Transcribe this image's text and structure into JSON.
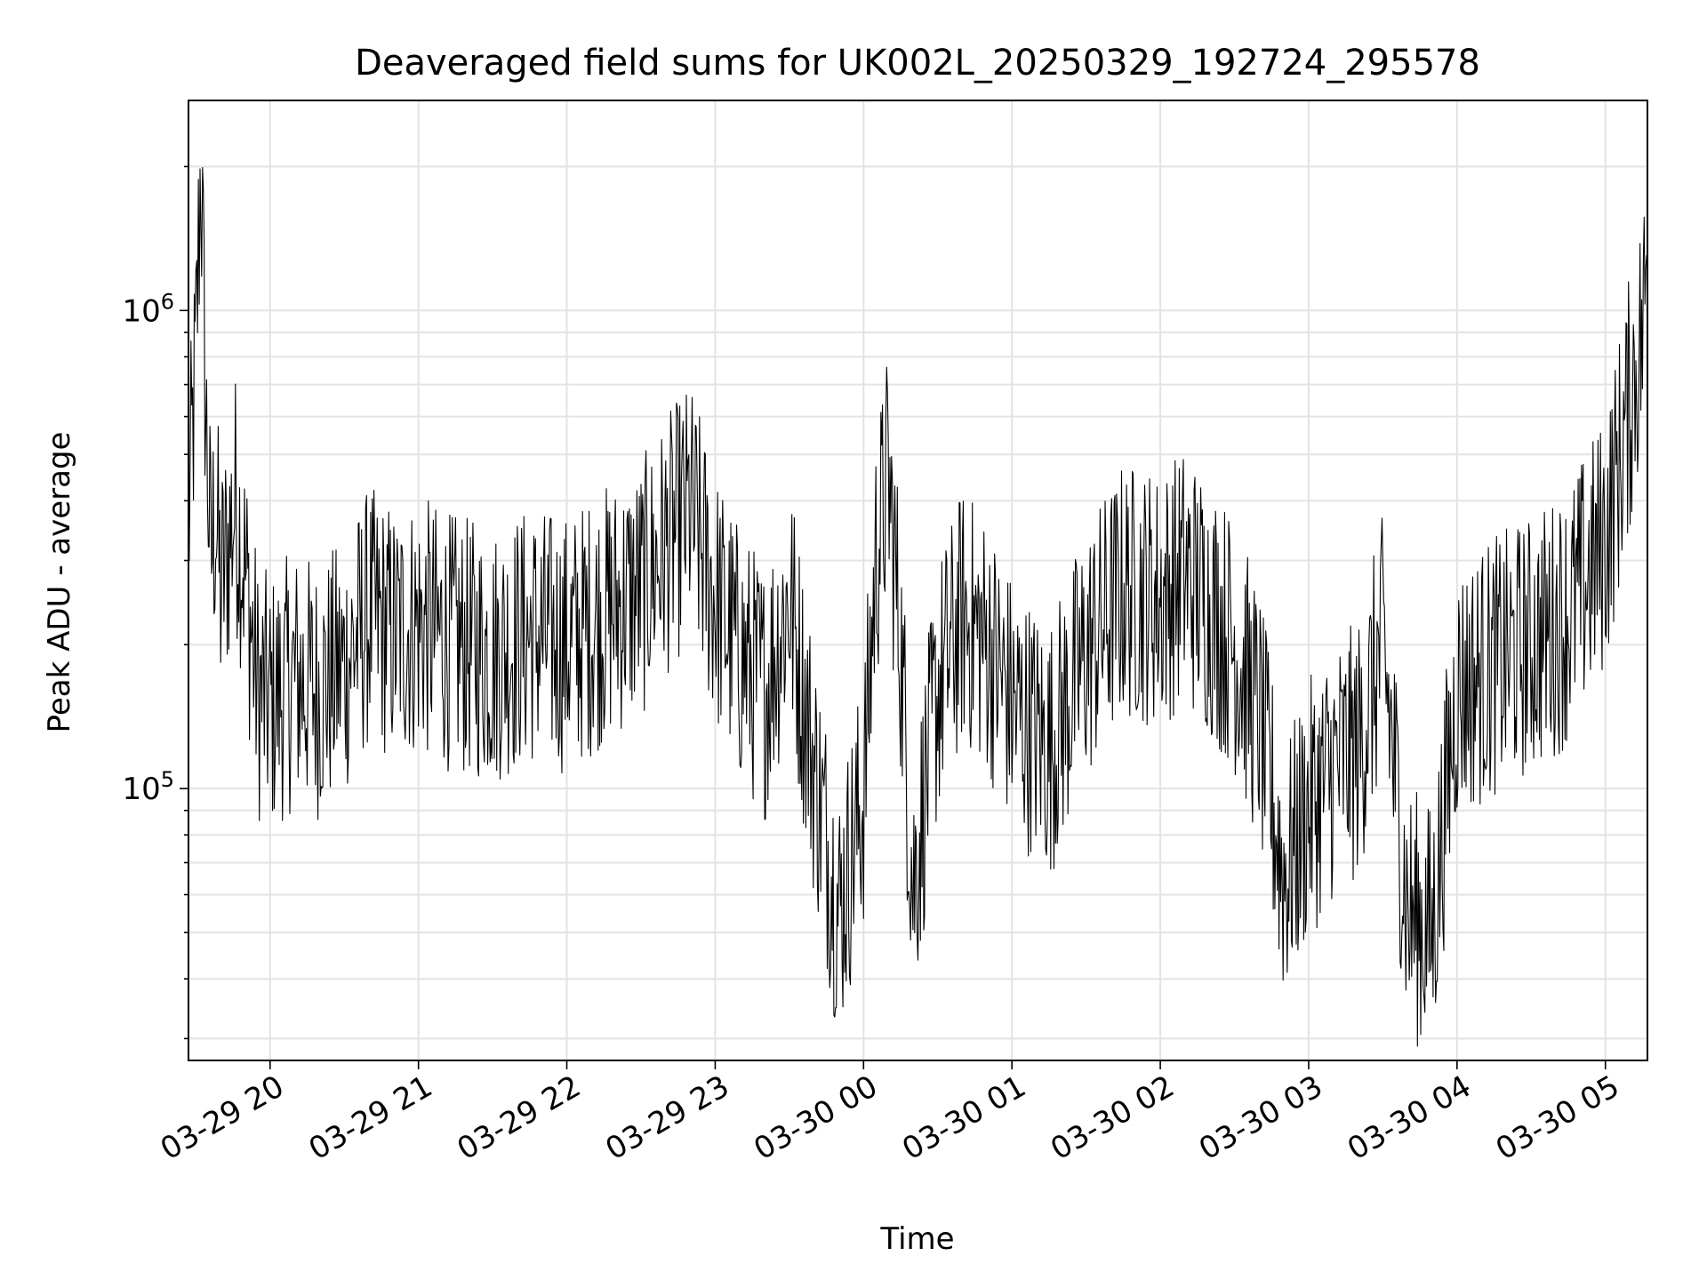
{
  "chart_data": {
    "type": "line",
    "title": "Deaveraged field sums for UK002L_20250329_192724_295578",
    "xlabel": "Time",
    "ylabel": "Peak ADU - average",
    "yscale": "log",
    "ylim": [
      27000,
      2750000
    ],
    "xlim": [
      "2025-03-29 19:27",
      "2025-03-30 05:17"
    ],
    "grid": true,
    "line_color": "#000000",
    "x_ticks": [
      {
        "time": "2025-03-29 20:00",
        "label": "03-29 20"
      },
      {
        "time": "2025-03-29 21:00",
        "label": "03-29 21"
      },
      {
        "time": "2025-03-29 22:00",
        "label": "03-29 22"
      },
      {
        "time": "2025-03-29 23:00",
        "label": "03-29 23"
      },
      {
        "time": "2025-03-30 00:00",
        "label": "03-30 00"
      },
      {
        "time": "2025-03-30 01:00",
        "label": "03-30 01"
      },
      {
        "time": "2025-03-30 02:00",
        "label": "03-30 02"
      },
      {
        "time": "2025-03-30 03:00",
        "label": "03-30 03"
      },
      {
        "time": "2025-03-30 04:00",
        "label": "03-30 04"
      },
      {
        "time": "2025-03-30 05:00",
        "label": "03-30 05"
      }
    ],
    "y_ticks": [
      {
        "value": 100000,
        "base": "10",
        "exp": "5"
      },
      {
        "value": 1000000,
        "base": "10",
        "exp": "6"
      }
    ],
    "series": [
      {
        "x": [
          "2025-03-29 19:27",
          "2025-03-29 19:30",
          "2025-03-29 19:32",
          "2025-03-29 19:34",
          "2025-03-29 19:36",
          "2025-03-29 19:38",
          "2025-03-29 19:40",
          "2025-03-29 19:43",
          "2025-03-29 19:46",
          "2025-03-29 19:50",
          "2025-03-29 19:55",
          "2025-03-29 20:00",
          "2025-03-29 20:10",
          "2025-03-29 20:20",
          "2025-03-29 20:30",
          "2025-03-29 20:40",
          "2025-03-29 20:50",
          "2025-03-29 21:00",
          "2025-03-29 21:15",
          "2025-03-29 21:30",
          "2025-03-29 21:45",
          "2025-03-29 22:00",
          "2025-03-29 22:15",
          "2025-03-29 22:30",
          "2025-03-29 22:40",
          "2025-03-29 22:50",
          "2025-03-29 23:00",
          "2025-03-29 23:10",
          "2025-03-29 23:20",
          "2025-03-29 23:30",
          "2025-03-29 23:40",
          "2025-03-29 23:50",
          "2025-03-30 00:00",
          "2025-03-30 00:05",
          "2025-03-30 00:10",
          "2025-03-30 00:15",
          "2025-03-30 00:20",
          "2025-03-30 00:30",
          "2025-03-30 00:40",
          "2025-03-30 00:50",
          "2025-03-30 01:00",
          "2025-03-30 01:15",
          "2025-03-30 01:30",
          "2025-03-30 01:45",
          "2025-03-30 02:00",
          "2025-03-30 02:10",
          "2025-03-30 02:20",
          "2025-03-30 02:30",
          "2025-03-30 02:40",
          "2025-03-30 02:50",
          "2025-03-30 03:00",
          "2025-03-30 03:10",
          "2025-03-30 03:20",
          "2025-03-30 03:30",
          "2025-03-30 03:40",
          "2025-03-30 03:50",
          "2025-03-30 04:00",
          "2025-03-30 04:15",
          "2025-03-30 04:30",
          "2025-03-30 04:45",
          "2025-03-30 05:00",
          "2025-03-30 05:05",
          "2025-03-30 05:10",
          "2025-03-30 05:15",
          "2025-03-30 05:17"
        ],
        "y": [
          350000,
          800000,
          2100000,
          600000,
          300000,
          380000,
          260000,
          320000,
          400000,
          280000,
          160000,
          150000,
          170000,
          160000,
          180000,
          230000,
          210000,
          220000,
          200000,
          190000,
          210000,
          200000,
          230000,
          260000,
          320000,
          380000,
          250000,
          190000,
          160000,
          250000,
          110000,
          55000,
          95000,
          300000,
          450000,
          200000,
          62000,
          160000,
          230000,
          200000,
          150000,
          120000,
          190000,
          260000,
          250000,
          280000,
          240000,
          200000,
          140000,
          65000,
          90000,
          110000,
          120000,
          200000,
          55000,
          50000,
          160000,
          180000,
          200000,
          230000,
          330000,
          460000,
          650000,
          900000,
          1300000
        ]
      }
    ]
  }
}
